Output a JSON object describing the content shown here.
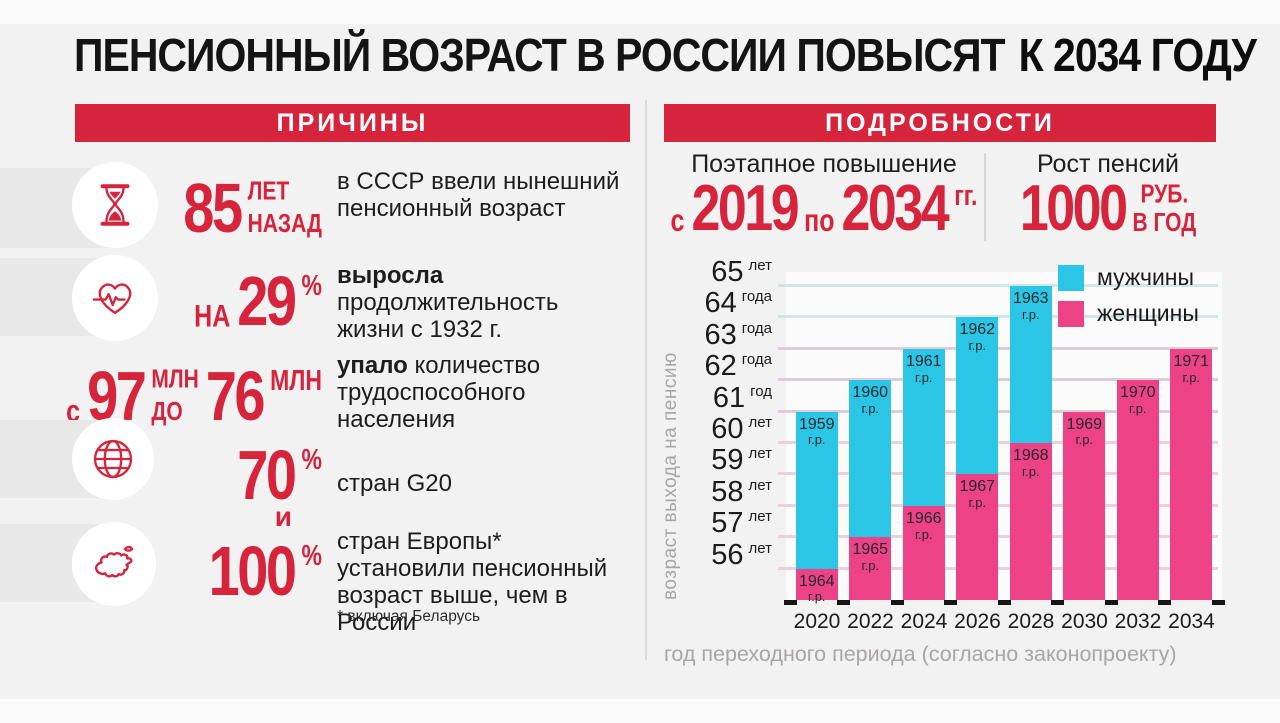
{
  "title": {
    "part1": "ПЕНСИОННЫЙ ВОЗРАСТ В РОССИИ ПОВЫСЯТ",
    "part2": "К 2034 ГОДУ"
  },
  "colors": {
    "red": "#d6243c",
    "cyan": "#2bc6e6",
    "pink": "#ee4287",
    "background": "#f3f2f2",
    "row_band": "#e9e8e8",
    "dark_text": "#1d1d1d",
    "gray_text": "#a8a5a6"
  },
  "reasons": {
    "header": "ПРИЧИНЫ",
    "items": [
      {
        "icon": "hourglass-icon",
        "figure": [
          {
            "k": "big",
            "t": "85"
          },
          {
            "k": "stack",
            "t": [
              "ЛЕТ",
              "НАЗАД"
            ]
          }
        ],
        "text_bold": "",
        "text_rest": "в СССР ввели нынешний пенсионный возраст"
      },
      {
        "icon": "heart-pulse-icon",
        "figure": [
          {
            "k": "small",
            "t": "НА"
          },
          {
            "k": "big",
            "t": "29"
          },
          {
            "k": "sup",
            "t": "%"
          }
        ],
        "text_bold": "выросла",
        "text_rest": " продолжительность жизни с 1932 г."
      },
      {
        "icon": null,
        "figure": [
          {
            "k": "small",
            "t": "с"
          },
          {
            "k": "big",
            "t": "97"
          },
          {
            "k": "stack",
            "t": [
              "МЛН",
              "ДО"
            ]
          },
          {
            "k": "big",
            "t": "76"
          },
          {
            "k": "sup",
            "t": "МЛН"
          }
        ],
        "text_bold": "упало",
        "text_rest": " количество трудоспособного населения"
      },
      {
        "icon": "globe-icon",
        "figure": [
          {
            "k": "big",
            "t": "70"
          },
          {
            "k": "sup",
            "t": "%"
          }
        ],
        "text_bold": "",
        "text_rest": "стран G20",
        "connector": "и"
      },
      {
        "icon": "europe-map-icon",
        "figure": [
          {
            "k": "big",
            "t": "100"
          },
          {
            "k": "sup",
            "t": "%"
          }
        ],
        "text_bold": "",
        "text_rest": "стран Европы* установили пенсионный возраст выше, чем в России",
        "footnote": "* включая Беларусь"
      }
    ]
  },
  "details": {
    "header": "ПОДРОБНОСТИ",
    "stats": [
      {
        "caption": "Поэтапное повышение",
        "figure": [
          {
            "k": "small",
            "t": "с"
          },
          {
            "k": "big",
            "t": "2019"
          },
          {
            "k": "small",
            "t": "по"
          },
          {
            "k": "big",
            "t": "2034"
          },
          {
            "k": "sup",
            "t": "гг."
          }
        ]
      },
      {
        "caption": "Рост пенсий",
        "figure": [
          {
            "k": "big",
            "t": "1000"
          },
          {
            "k": "stack",
            "t": [
              "РУБ.",
              "В ГОД"
            ]
          }
        ]
      }
    ]
  },
  "chart_data": {
    "type": "bar",
    "categories": [
      "2020",
      "2022",
      "2024",
      "2026",
      "2028",
      "2030",
      "2032",
      "2034"
    ],
    "series": [
      {
        "name": "мужчины",
        "color": "#2bc6e6",
        "values": [
          61,
          62,
          63,
          64,
          65,
          null,
          null,
          null
        ],
        "bar_labels": [
          "1959",
          "1960",
          "1961",
          "1962",
          "1963",
          null,
          null,
          null
        ]
      },
      {
        "name": "женщины",
        "color": "#ee4287",
        "values": [
          56,
          57,
          58,
          59,
          60,
          61,
          62,
          63
        ],
        "bar_labels": [
          "1964",
          "1965",
          "1966",
          "1967",
          "1968",
          "1969",
          "1970",
          "1971"
        ]
      }
    ],
    "bar_label_suffix": "г.р.",
    "y_ticks": [
      {
        "v": 65,
        "u": "лет"
      },
      {
        "v": 64,
        "u": "года"
      },
      {
        "v": 63,
        "u": "года"
      },
      {
        "v": 62,
        "u": "года"
      },
      {
        "v": 61,
        "u": "год"
      },
      {
        "v": 60,
        "u": "лет"
      },
      {
        "v": 59,
        "u": "лет"
      },
      {
        "v": 58,
        "u": "лет"
      },
      {
        "v": 57,
        "u": "лет"
      },
      {
        "v": 56,
        "u": "лет"
      }
    ],
    "ylim": [
      55,
      65.5
    ],
    "ylabel": "возраст выхода на пенсию",
    "xlabel": "год переходного периода (согласно законопроекту)",
    "legend_position": "top-right",
    "grid": true
  }
}
